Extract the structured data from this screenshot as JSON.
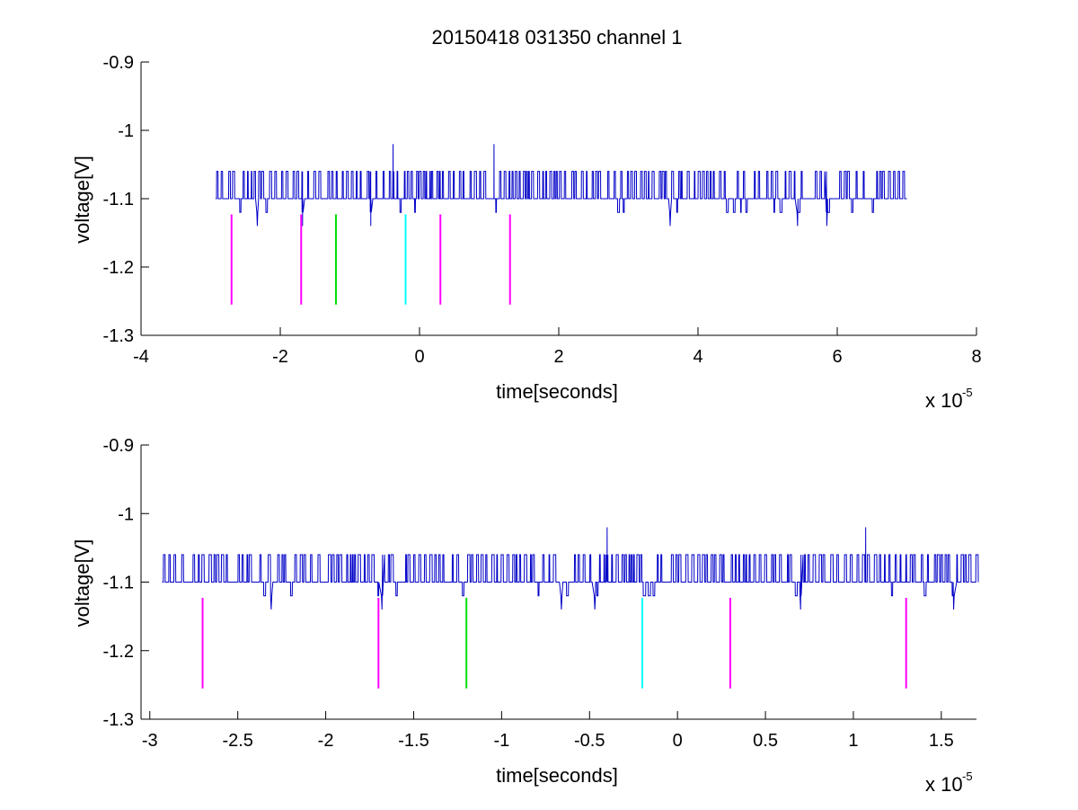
{
  "figure": {
    "title": "20150418 031350 channel 1"
  },
  "chart_data": [
    {
      "type": "line",
      "title": "20150418 031350 channel 1",
      "xlabel": "time[seconds]",
      "ylabel": "voltage[V]",
      "x_exponent_label": "x 10",
      "x_exponent": "-5",
      "xlim": [
        -4,
        8
      ],
      "ylim": [
        -1.3,
        -0.9
      ],
      "x_ticks": [
        -4,
        -2,
        0,
        2,
        4,
        6,
        8
      ],
      "x_tick_labels": [
        "-4",
        "-2",
        "0",
        "2",
        "4",
        "6",
        "8"
      ],
      "y_ticks": [
        -1.3,
        -1.2,
        -1.1,
        -1.0,
        -0.9
      ],
      "y_tick_labels": [
        "-1.3",
        "-1.2",
        "-1.1",
        "-1",
        "-0.9"
      ],
      "grid": false,
      "series": [
        {
          "color": "#0000c8",
          "x_range": [
            -2.93,
            7.0
          ],
          "baseline": -1.1,
          "levels": [
            -1.14,
            -1.12,
            -1.1,
            -1.06,
            -1.02
          ],
          "spikes": [
            {
              "x": -0.38,
              "y": -1.02
            },
            {
              "x": 1.07,
              "y": -1.02
            }
          ],
          "low_dips": [
            {
              "x": -2.33,
              "y": -1.14
            },
            {
              "x": -1.68,
              "y": -1.14
            },
            {
              "x": -0.7,
              "y": -1.14
            },
            {
              "x": 3.6,
              "y": -1.14
            },
            {
              "x": 5.43,
              "y": -1.14
            },
            {
              "x": 5.85,
              "y": -1.14
            }
          ]
        }
      ],
      "markers": [
        {
          "x": -2.7,
          "y1": -1.123,
          "y2": -1.255,
          "color": "#ff00ff"
        },
        {
          "x": -1.7,
          "y1": -1.123,
          "y2": -1.255,
          "color": "#ff00ff"
        },
        {
          "x": -1.2,
          "y1": -1.123,
          "y2": -1.255,
          "color": "#00e000"
        },
        {
          "x": -0.2,
          "y1": -1.123,
          "y2": -1.255,
          "color": "#00ffff"
        },
        {
          "x": 0.3,
          "y1": -1.123,
          "y2": -1.255,
          "color": "#ff00ff"
        },
        {
          "x": 1.3,
          "y1": -1.123,
          "y2": -1.255,
          "color": "#ff00ff"
        }
      ]
    },
    {
      "type": "line",
      "xlabel": "time[seconds]",
      "ylabel": "voltage[V]",
      "x_exponent_label": "x 10",
      "x_exponent": "-5",
      "xlim": [
        -3.05,
        1.7
      ],
      "ylim": [
        -1.3,
        -0.9
      ],
      "x_ticks": [
        -3,
        -2.5,
        -2,
        -1.5,
        -1,
        -0.5,
        0,
        0.5,
        1,
        1.5
      ],
      "x_tick_labels": [
        "-3",
        "-2.5",
        "-2",
        "-1.5",
        "-1",
        "-0.5",
        "0",
        "0.5",
        "1",
        "1.5"
      ],
      "y_ticks": [
        -1.3,
        -1.2,
        -1.1,
        -1.0,
        -0.9
      ],
      "y_tick_labels": [
        "-1.3",
        "-1.2",
        "-1.1",
        "-1",
        "-0.9"
      ],
      "grid": false,
      "series": [
        {
          "color": "#0000c8",
          "x_range": [
            -2.93,
            1.7
          ],
          "baseline": -1.1,
          "levels": [
            -1.14,
            -1.12,
            -1.1,
            -1.06,
            -1.02
          ],
          "spikes": [
            {
              "x": -0.4,
              "y": -1.02
            },
            {
              "x": 1.07,
              "y": -1.02
            }
          ],
          "low_dips": [
            {
              "x": -2.31,
              "y": -1.14
            },
            {
              "x": -1.68,
              "y": -1.14
            },
            {
              "x": -0.66,
              "y": -1.14
            },
            {
              "x": -0.47,
              "y": -1.14
            },
            {
              "x": 0.7,
              "y": -1.14
            },
            {
              "x": 1.57,
              "y": -1.14
            }
          ]
        }
      ],
      "markers": [
        {
          "x": -2.7,
          "y1": -1.123,
          "y2": -1.255,
          "color": "#ff00ff"
        },
        {
          "x": -1.7,
          "y1": -1.123,
          "y2": -1.255,
          "color": "#ff00ff"
        },
        {
          "x": -1.2,
          "y1": -1.123,
          "y2": -1.255,
          "color": "#00e000"
        },
        {
          "x": -0.2,
          "y1": -1.123,
          "y2": -1.255,
          "color": "#00ffff"
        },
        {
          "x": 0.3,
          "y1": -1.123,
          "y2": -1.255,
          "color": "#ff00ff"
        },
        {
          "x": 1.3,
          "y1": -1.123,
          "y2": -1.255,
          "color": "#ff00ff"
        }
      ]
    }
  ]
}
